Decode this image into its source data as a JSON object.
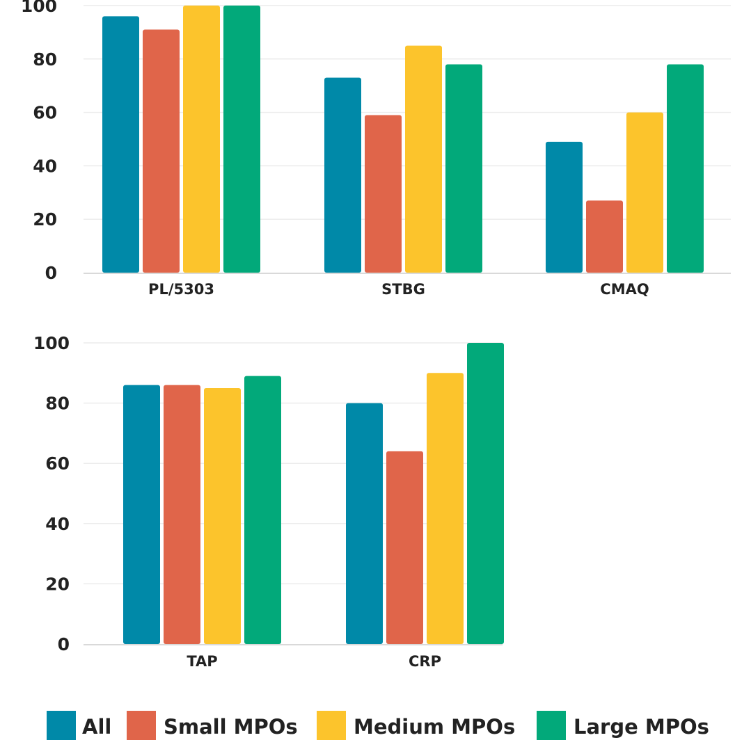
{
  "chart_data": [
    {
      "type": "bar",
      "categories": [
        "PL/5303",
        "STBG",
        "CMAQ"
      ],
      "yticks": [
        "0",
        "20",
        "40",
        "60",
        "80",
        "100"
      ],
      "ylim": [
        0,
        100
      ],
      "grid": true,
      "series": [
        {
          "name": "All",
          "color": "#0089a8",
          "values": [
            96,
            73,
            49
          ]
        },
        {
          "name": "Small MPOs",
          "color": "#e0654a",
          "values": [
            91,
            59,
            27
          ]
        },
        {
          "name": "Medium MPOs",
          "color": "#fcc42c",
          "values": [
            100,
            85,
            60
          ]
        },
        {
          "name": "Large MPOs",
          "color": "#02a97a",
          "values": [
            100,
            78,
            78
          ]
        }
      ]
    },
    {
      "type": "bar",
      "categories": [
        "TAP",
        "CRP"
      ],
      "yticks": [
        "0",
        "20",
        "40",
        "60",
        "80",
        "100"
      ],
      "ylim": [
        0,
        100
      ],
      "grid": true,
      "series": [
        {
          "name": "All",
          "color": "#0089a8",
          "values": [
            86,
            80
          ]
        },
        {
          "name": "Small MPOs",
          "color": "#e0654a",
          "values": [
            86,
            64
          ]
        },
        {
          "name": "Medium MPOs",
          "color": "#fcc42c",
          "values": [
            85,
            90
          ]
        },
        {
          "name": "Large MPOs",
          "color": "#02a97a",
          "values": [
            89,
            100
          ]
        }
      ]
    }
  ],
  "legend": {
    "placement": "bottom",
    "items": [
      {
        "label": "All",
        "color": "#0089a8"
      },
      {
        "label": "Small MPOs",
        "color": "#e0654a"
      },
      {
        "label": "Medium MPOs",
        "color": "#fcc42c"
      },
      {
        "label": "Large MPOs",
        "color": "#02a97a"
      }
    ]
  }
}
